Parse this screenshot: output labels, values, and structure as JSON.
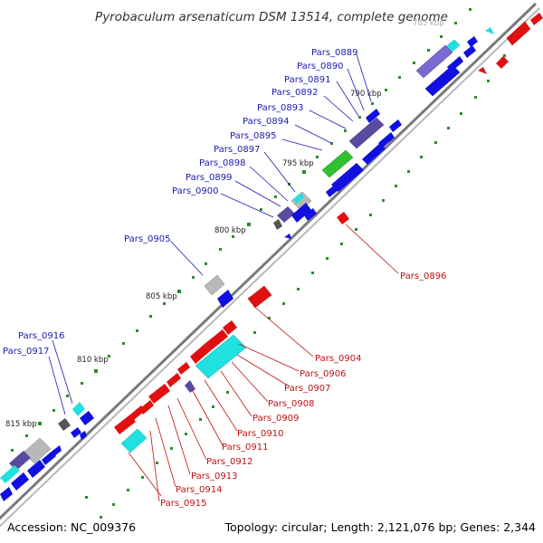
{
  "title": "Pyrobaculum arsenaticum DSM 13514, complete genome",
  "accession": "Accession: NC_009376",
  "topology": "Topology: circular; Length: 2,121,076 bp; Genes: 2,344",
  "colors": {
    "forward_cds": "#1010e0",
    "reverse_cds": "#e01010",
    "rna": "#20e0e0",
    "pseudo": "#5a4aa0",
    "gray": "#b0b0b0",
    "green": "#30c030",
    "backbone": "#808080"
  },
  "kbp_labels": [
    "785 kbp",
    "790 kbp",
    "795 kbp",
    "800 kbp",
    "805 kbp",
    "810 kbp",
    "815 kbp"
  ],
  "gene_labels_top": [
    "Pars_0889",
    "Pars_0890",
    "Pars_0891",
    "Pars_0892",
    "Pars_0893",
    "Pars_0894",
    "Pars_0895",
    "Pars_0897",
    "Pars_0898",
    "Pars_0899",
    "Pars_0900",
    "Pars_0905",
    "Pars_0916",
    "Pars_0917"
  ],
  "gene_labels_bottom": [
    "Pars_0896",
    "Pars_0904",
    "Pars_0906",
    "Pars_0907",
    "Pars_0908",
    "Pars_0909",
    "Pars_0910",
    "Pars_0911",
    "Pars_0912",
    "Pars_0913",
    "Pars_0914",
    "Pars_0915"
  ]
}
